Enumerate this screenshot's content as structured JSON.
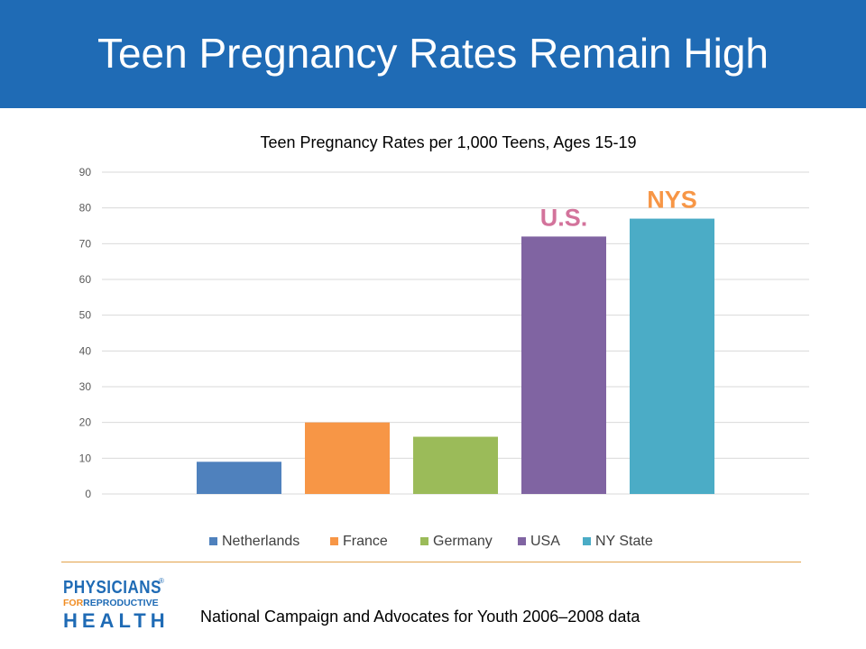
{
  "header": {
    "title": "Teen Pregnancy Rates Remain High"
  },
  "colors": {
    "header_bg": "#1f6bb5",
    "divider": "#e3a24a"
  },
  "chart_data": {
    "type": "bar",
    "title": "Teen Pregnancy Rates per 1,000 Teens, Ages 15-19",
    "xlabel": "",
    "ylabel": "",
    "ylim": [
      0,
      90
    ],
    "yticks": [
      0,
      10,
      20,
      30,
      40,
      50,
      60,
      70,
      80,
      90
    ],
    "grid": true,
    "legend_position": "bottom",
    "series": [
      {
        "name": "Netherlands",
        "value": 9,
        "color": "#4f81bd"
      },
      {
        "name": "France",
        "value": 20,
        "color": "#f79646"
      },
      {
        "name": "Germany",
        "value": 16,
        "color": "#9bbb59"
      },
      {
        "name": "USA",
        "value": 72,
        "color": "#8064a2",
        "annotation": "U.S.",
        "annotation_color": "#d3739b"
      },
      {
        "name": "NY State",
        "value": 77,
        "color": "#4bacc6",
        "annotation": "NYS",
        "annotation_color": "#f79646"
      }
    ]
  },
  "footer": {
    "source": "National Campaign and Advocates for Youth 2006–2008 data",
    "logo": {
      "line1": "PHYSICIANS",
      "line2_for": "FOR",
      "line2_rest": "REPRODUCTIVE",
      "line3": "HEALTH",
      "registered": "®"
    }
  }
}
